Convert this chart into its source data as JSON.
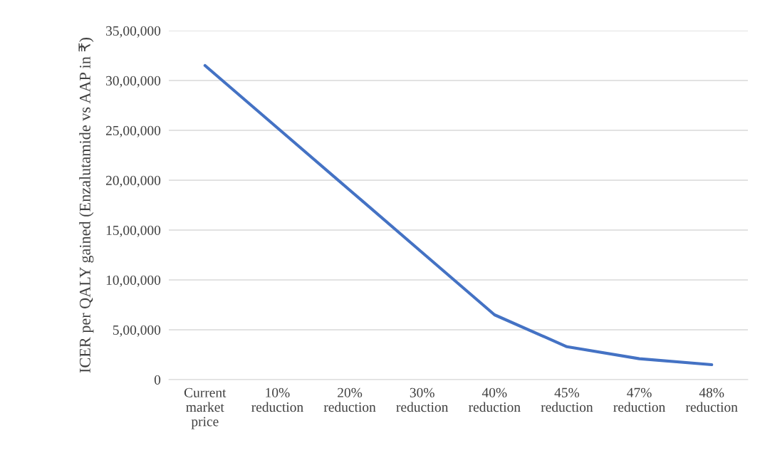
{
  "chart_data": {
    "type": "line",
    "ylabel": "ICER per QALY gained (Enzalutamide vs AAP in ₹)",
    "categories": [
      "Current market price",
      "10% reduction",
      "20% reduction",
      "30% reduction",
      "40% reduction",
      "45% reduction",
      "47% reduction",
      "48% reduction"
    ],
    "series": [
      {
        "color": "#4472c4",
        "values": [
          3150000,
          2525000,
          1900000,
          1275000,
          650000,
          330000,
          210000,
          150000
        ]
      }
    ],
    "ylim": [
      0,
      3500000
    ],
    "yticks": [
      {
        "value": 0,
        "label": "0"
      },
      {
        "value": 500000,
        "label": "5,00,000"
      },
      {
        "value": 1000000,
        "label": "10,00,000"
      },
      {
        "value": 1500000,
        "label": "15,00,000"
      },
      {
        "value": 2000000,
        "label": "20,00,000"
      },
      {
        "value": 2500000,
        "label": "25,00,000"
      },
      {
        "value": 3000000,
        "label": "30,00,000"
      },
      {
        "value": 3500000,
        "label": "35,00,000"
      }
    ],
    "grid": "y",
    "marker": "none",
    "line_style": "solid"
  }
}
